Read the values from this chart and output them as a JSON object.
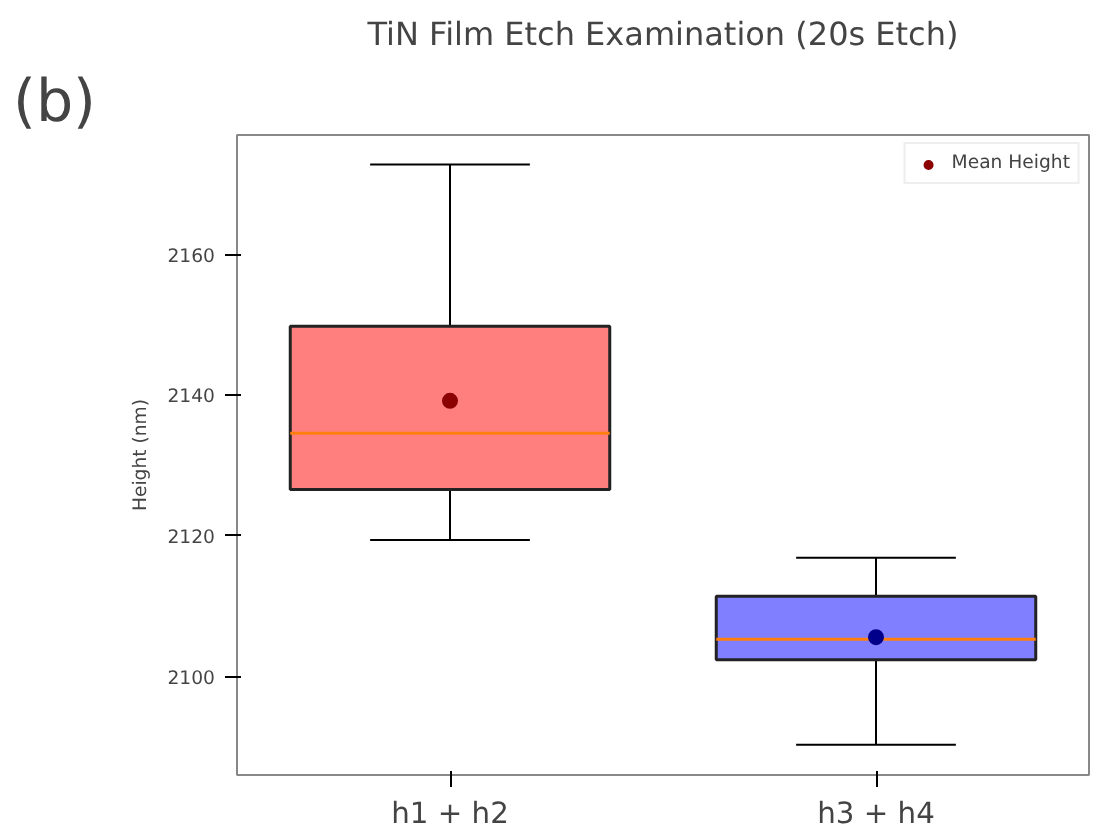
{
  "chart_data": {
    "type": "box",
    "title": "TiN Film Etch Examination (20s Etch)",
    "ylabel": "Height (nm)",
    "categories": [
      "h1 + h2",
      "h3 + h4"
    ],
    "ylim": [
      2086,
      2177
    ],
    "yticks": [
      2100,
      2120,
      2140,
      2160
    ],
    "grid": false,
    "legend": "top right",
    "annotations": [
      "(b)"
    ],
    "series": [
      {
        "colors": [
          "#ff7f7f",
          "#7f7fff"
        ],
        "boxes": [
          {
            "low": 2119.4,
            "q1": 2126.6,
            "median": 2134.6,
            "q3": 2149.8,
            "high": 2172.8
          },
          {
            "low": 2090.3,
            "q1": 2102.4,
            "median": 2105.3,
            "q3": 2111.4,
            "high": 2116.9
          }
        ]
      },
      {
        "type": "scatter",
        "name": "Mean Height",
        "colors": [
          "#8b0000",
          "#00008b"
        ],
        "x": [
          "h1 + h2",
          "h3 + h4"
        ],
        "values": [
          2139.2,
          2105.6
        ]
      }
    ]
  }
}
